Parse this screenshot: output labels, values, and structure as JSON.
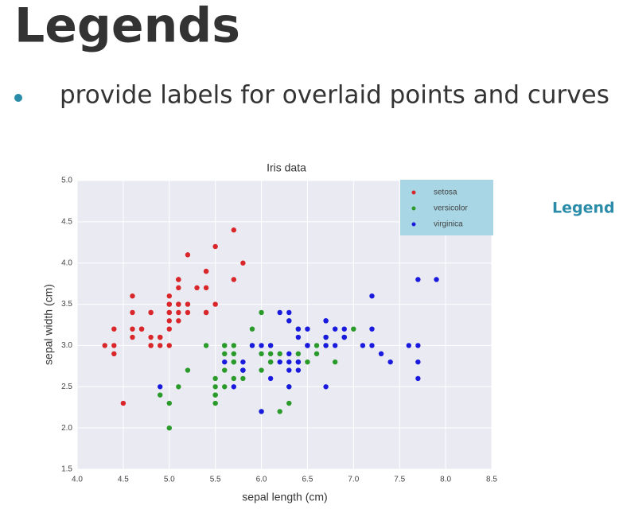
{
  "slide": {
    "title": "Legends",
    "bullet": "provide labels for overlaid points and curves",
    "annotation": "Legend"
  },
  "chart_data": {
    "type": "scatter",
    "title": "Iris data",
    "x_label": "sepal length (cm)",
    "y_label": "sepal width (cm)",
    "xlim": [
      4.0,
      8.5
    ],
    "ylim": [
      1.5,
      5.0
    ],
    "xticks": [
      {
        "value": 4,
        "label": "4.0"
      },
      4.5,
      {
        "value": 5,
        "label": "5.0"
      },
      5.5,
      {
        "value": 6,
        "label": "6.0"
      },
      6.5,
      {
        "value": 7,
        "label": "7.0"
      },
      7.5,
      {
        "value": 8,
        "label": "8.0"
      },
      8.5
    ],
    "yticks": [
      1.5,
      {
        "value": 2,
        "label": "2.0"
      },
      2.5,
      {
        "value": 3,
        "label": "3.0"
      },
      3.5,
      {
        "value": 4,
        "label": "4.0"
      },
      4.5,
      {
        "value": 5,
        "label": "5.0"
      }
    ],
    "grid": true,
    "legend": "upper right",
    "series": [
      {
        "name": "setosa",
        "color": "#d9262a",
        "x": [
          5.1,
          4.9,
          4.7,
          4.6,
          5.0,
          5.4,
          4.6,
          5.0,
          4.4,
          4.9,
          5.4,
          4.8,
          4.8,
          4.3,
          5.8,
          5.7,
          5.4,
          5.1,
          5.7,
          5.1,
          5.4,
          5.1,
          4.6,
          5.1,
          4.8,
          5.0,
          5.0,
          5.2,
          5.2,
          4.7,
          4.8,
          5.4,
          5.2,
          5.5,
          4.9,
          5.0,
          5.5,
          4.9,
          4.4,
          5.1,
          5.0,
          4.5,
          4.4,
          5.0,
          5.1,
          4.8,
          5.1,
          4.6,
          5.3,
          5.0
        ],
        "y": [
          3.5,
          3.0,
          3.2,
          3.1,
          3.6,
          3.9,
          3.4,
          3.4,
          2.9,
          3.1,
          3.7,
          3.4,
          3.0,
          3.0,
          4.0,
          4.4,
          3.9,
          3.5,
          3.8,
          3.8,
          3.4,
          3.7,
          3.6,
          3.3,
          3.4,
          3.0,
          3.4,
          3.5,
          3.4,
          3.2,
          3.1,
          3.4,
          4.1,
          4.2,
          3.1,
          3.2,
          3.5,
          3.1,
          3.0,
          3.4,
          3.5,
          2.3,
          3.2,
          3.5,
          3.8,
          3.0,
          3.8,
          3.2,
          3.7,
          3.3
        ]
      },
      {
        "name": "versicolor",
        "color": "#2a9a2a",
        "x": [
          7.0,
          6.4,
          6.9,
          5.5,
          6.5,
          5.7,
          6.3,
          4.9,
          6.6,
          5.2,
          5.0,
          5.9,
          6.0,
          6.1,
          5.6,
          6.7,
          5.6,
          5.8,
          6.2,
          5.6,
          5.9,
          6.1,
          6.3,
          6.1,
          6.4,
          6.6,
          6.8,
          6.7,
          6.0,
          5.7,
          5.5,
          5.5,
          5.8,
          6.0,
          5.4,
          6.0,
          6.7,
          6.3,
          5.6,
          5.5,
          5.5,
          6.1,
          5.8,
          5.0,
          5.6,
          5.7,
          5.7,
          6.2,
          5.1,
          5.7
        ],
        "y": [
          3.2,
          3.2,
          3.1,
          2.3,
          2.8,
          2.8,
          3.3,
          2.4,
          2.9,
          2.7,
          2.0,
          3.0,
          2.2,
          2.9,
          2.9,
          3.1,
          3.0,
          2.7,
          2.2,
          2.5,
          3.2,
          2.8,
          2.5,
          2.8,
          2.9,
          3.0,
          2.8,
          3.0,
          2.9,
          2.6,
          2.4,
          2.4,
          2.7,
          2.7,
          3.0,
          3.4,
          3.1,
          2.3,
          3.0,
          2.5,
          2.6,
          3.0,
          2.6,
          2.3,
          2.7,
          3.0,
          2.9,
          2.9,
          2.5,
          2.8
        ]
      },
      {
        "name": "virginica",
        "color": "#1a1adf",
        "x": [
          6.3,
          5.8,
          7.1,
          6.3,
          6.5,
          7.6,
          4.9,
          7.3,
          6.7,
          7.2,
          6.5,
          6.4,
          6.8,
          5.7,
          5.8,
          6.4,
          6.5,
          7.7,
          7.7,
          6.0,
          6.9,
          5.6,
          7.7,
          6.3,
          6.7,
          7.2,
          6.2,
          6.1,
          6.4,
          7.2,
          7.4,
          7.9,
          6.4,
          6.3,
          6.1,
          7.7,
          6.3,
          6.4,
          6.0,
          6.9,
          6.7,
          6.9,
          5.8,
          6.8,
          6.7,
          6.7,
          6.3,
          6.5,
          6.2,
          5.9
        ],
        "y": [
          3.3,
          2.7,
          3.0,
          2.9,
          3.0,
          3.0,
          2.5,
          2.9,
          2.5,
          3.6,
          3.2,
          2.7,
          3.0,
          2.5,
          2.8,
          3.2,
          3.0,
          3.8,
          2.6,
          2.2,
          3.2,
          2.8,
          2.8,
          2.7,
          3.3,
          3.2,
          2.8,
          3.0,
          2.8,
          3.0,
          2.8,
          3.8,
          2.8,
          2.8,
          2.6,
          3.0,
          3.4,
          3.1,
          3.0,
          3.1,
          3.1,
          3.1,
          2.7,
          3.2,
          3.3,
          3.0,
          2.5,
          3.0,
          3.4,
          3.0
        ]
      }
    ]
  }
}
